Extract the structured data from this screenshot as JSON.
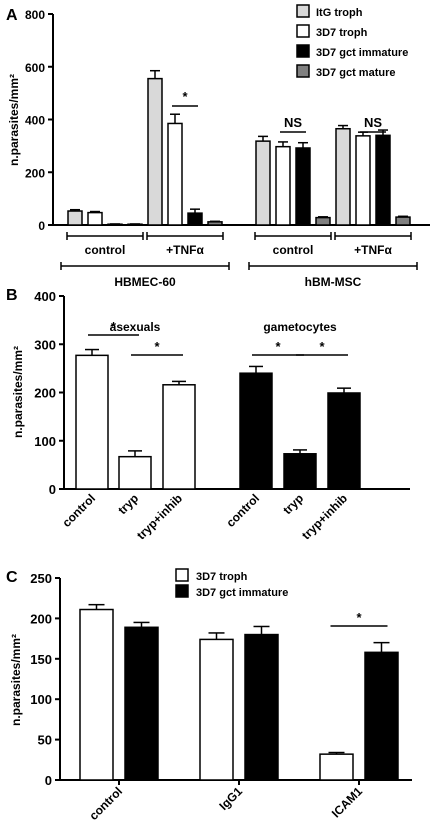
{
  "chart_data": [
    {
      "panel": "A",
      "type": "bar",
      "ylabel": "n.parasites/mm²",
      "ylim": [
        0,
        800
      ],
      "yticks": [
        0,
        200,
        400,
        600,
        800
      ],
      "legend_position": "top-right",
      "series": [
        {
          "name": "ItG troph",
          "fill": "#d9d9d9",
          "values": [
            53,
            555,
            318,
            365
          ],
          "errors": [
            5,
            30,
            18,
            12
          ]
        },
        {
          "name": "3D7 troph",
          "fill": "#ffffff",
          "values": [
            47,
            385,
            297,
            338
          ],
          "errors": [
            4,
            35,
            18,
            14
          ]
        },
        {
          "name": "3D7 gct  immature",
          "fill": "#000000",
          "values": [
            3,
            45,
            292,
            340
          ],
          "errors": [
            1,
            15,
            20,
            20
          ]
        },
        {
          "name": "3D7 gct  mature",
          "fill": "#808080",
          "values": [
            3,
            12,
            28,
            30
          ],
          "errors": [
            1,
            2,
            3,
            3
          ]
        }
      ],
      "groups": [
        "control",
        "+TNFα",
        "control",
        "+TNFα"
      ],
      "cell_groups": [
        "HBMEC-60",
        "hBM-MSC"
      ],
      "annotations": [
        {
          "text": "*",
          "group": 1,
          "between": [
            1,
            2
          ]
        },
        {
          "text": "NS",
          "group": 2,
          "between": [
            1,
            2
          ]
        },
        {
          "text": "NS",
          "group": 3,
          "between": [
            1,
            2
          ]
        }
      ]
    },
    {
      "panel": "B",
      "type": "bar",
      "ylabel": "n.parasites/mm²",
      "ylim": [
        0,
        400
      ],
      "yticks": [
        0,
        100,
        200,
        300,
        400
      ],
      "categories": [
        "control",
        "tryp",
        "tryp+inhib",
        "control",
        "tryp",
        "tryp+inhib"
      ],
      "values": [
        277,
        67,
        216,
        240,
        73,
        199
      ],
      "errors": [
        12,
        12,
        7,
        14,
        8,
        10
      ],
      "fills": [
        "#ffffff",
        "#ffffff",
        "#ffffff",
        "#000000",
        "#000000",
        "#000000"
      ],
      "group_labels": [
        "asexuals",
        "gametocytes"
      ],
      "annotations": [
        {
          "text": "*",
          "between": [
            0,
            1
          ]
        },
        {
          "text": "*",
          "between": [
            1,
            2
          ]
        },
        {
          "text": "*",
          "between": [
            3,
            4
          ]
        },
        {
          "text": "*",
          "between": [
            4,
            5
          ]
        }
      ]
    },
    {
      "panel": "C",
      "type": "bar",
      "ylabel": "n.parasites/mm²",
      "ylim": [
        0,
        250
      ],
      "yticks": [
        0,
        50,
        100,
        150,
        200,
        250
      ],
      "categories": [
        "control",
        "IgG1",
        "ICAM1"
      ],
      "legend_position": "top-center",
      "series": [
        {
          "name": "3D7 troph",
          "fill": "#ffffff",
          "values": [
            211,
            174,
            32
          ],
          "errors": [
            6,
            8,
            2
          ]
        },
        {
          "name": "3D7 gct immature",
          "fill": "#000000",
          "values": [
            189,
            180,
            158
          ],
          "errors": [
            6,
            10,
            12
          ]
        }
      ],
      "annotations": [
        {
          "text": "*",
          "group": 2,
          "between": [
            0,
            1
          ]
        }
      ]
    }
  ]
}
